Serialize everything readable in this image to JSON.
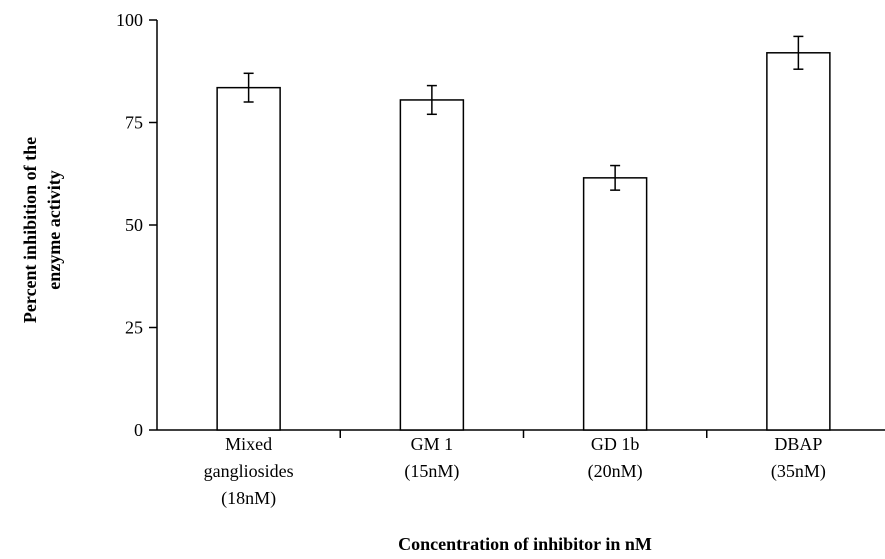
{
  "chart_data": {
    "type": "bar",
    "categories": [
      [
        "Mixed",
        "gangliosides",
        "(18nM)"
      ],
      [
        "GM 1",
        "(15nM)"
      ],
      [
        "GD 1b",
        "(20nM)"
      ],
      [
        "DBAP",
        "(35nM)"
      ]
    ],
    "values": [
      83.5,
      80.5,
      61.5,
      92
    ],
    "error": [
      3.5,
      3.5,
      3,
      4
    ],
    "ylim": [
      0,
      100
    ],
    "yticks": [
      0,
      25,
      50,
      75,
      100
    ],
    "ylabel_lines": [
      "Percent inhibition of the",
      "enzyme activity"
    ],
    "xlabel": "Concentration of inhibitor in nM",
    "grid": false,
    "bar_fill": "#ffffff",
    "bar_stroke": "#000000"
  }
}
